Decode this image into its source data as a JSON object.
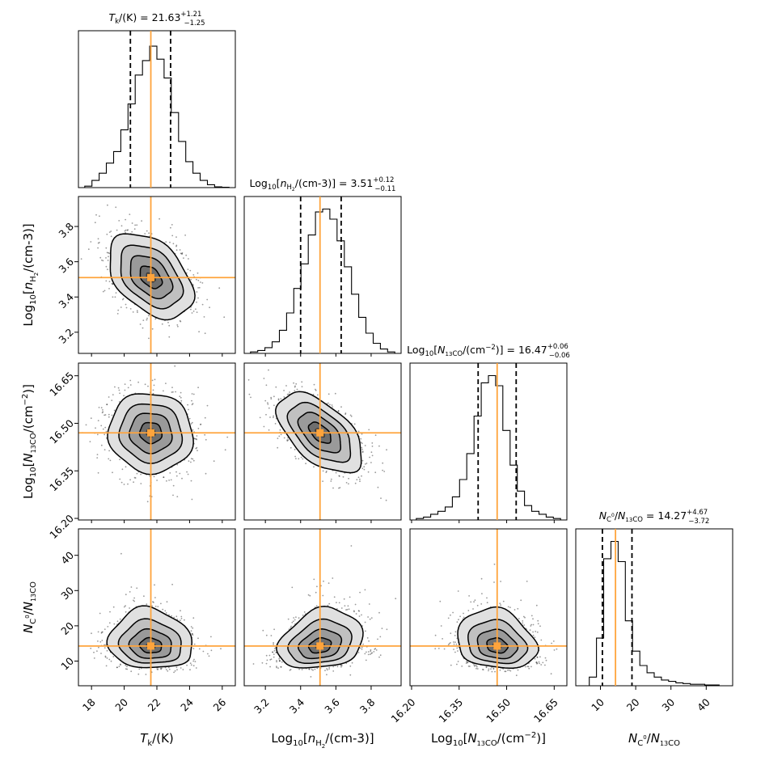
{
  "style": {
    "truth_color": "#ffa43c",
    "quantile_color": "#000000",
    "hist_color": "#000000",
    "density_colors": [
      "#ffffff",
      "#e0e0e0",
      "#c0c0c0",
      "#9a9a9a",
      "#6e6e6e",
      "#3a3a3a"
    ]
  },
  "chart_data": {
    "type": "corner",
    "parameters": [
      {
        "id": "tk",
        "label": "T_k/(K)",
        "label_svg": "<tspan font-style='italic'>T</tspan><tspan font-size='10' dy='4'>k</tspan><tspan dy='-4'>/(K)</tspan>",
        "title_svg": "<tspan font-style='italic'>T</tspan><tspan font-size='8.5' dy='3'>k</tspan><tspan dy='-3'>/(K) = 21.63</tspan><tspan font-size='8.5' dy='-6'>+1.21</tspan><tspan font-size='8.5' dx='-22' dy='11'>−1.25</tspan>",
        "title": "T_k/(K) = 21.63 +1.21 -1.25",
        "median": 21.63,
        "err_plus": 1.21,
        "err_minus": 1.25,
        "range": [
          17.2,
          26.8
        ],
        "ticks": [
          18,
          20,
          22,
          24,
          26
        ],
        "tick_labels": [
          "18",
          "20",
          "22",
          "24",
          "26"
        ],
        "hist_heights": [
          0.01,
          0.05,
          0.1,
          0.17,
          0.25,
          0.4,
          0.58,
          0.78,
          0.88,
          0.98,
          0.89,
          0.76,
          0.52,
          0.32,
          0.18,
          0.1,
          0.05,
          0.02,
          0.005,
          0.002
        ]
      },
      {
        "id": "nh2",
        "label": "Log10[n_H2/(cm-3)]",
        "label_svg": "<tspan>Log</tspan><tspan font-size='10' dy='4'>10</tspan><tspan dy='-4'>[</tspan><tspan font-style='italic'>n</tspan><tspan font-size='10' dy='4'>H</tspan><tspan font-size='7' dy='3'>2</tspan><tspan dy='-7'>/(cm-3)]</tspan>",
        "title_svg": "<tspan>Log</tspan><tspan font-size='8.5' dy='3'>10</tspan><tspan dy='-3'>[</tspan><tspan font-style='italic'>n</tspan><tspan font-size='8.5' dy='3'>H</tspan><tspan font-size='6' dy='2'>2</tspan><tspan dy='-5'>/(cm-3)] = 3.51</tspan><tspan font-size='8.5' dy='-6'>+0.12</tspan><tspan font-size='8.5' dx='-24' dy='11'>−0.11</tspan>",
        "title": "Log10[n_H2/(cm-3)] = 3.51 +0.12 -0.11",
        "median": 3.51,
        "err_plus": 0.12,
        "err_minus": 0.11,
        "range": [
          3.08,
          3.97
        ],
        "ticks": [
          3.2,
          3.4,
          3.6,
          3.8
        ],
        "tick_labels": [
          "3.2",
          "3.4",
          "3.6",
          "3.8"
        ],
        "hist_heights": [
          0.01,
          0.02,
          0.04,
          0.08,
          0.16,
          0.28,
          0.45,
          0.62,
          0.82,
          0.98,
          1.0,
          0.93,
          0.78,
          0.6,
          0.41,
          0.25,
          0.14,
          0.07,
          0.03,
          0.01
        ]
      },
      {
        "id": "n13co",
        "label": "Log10[N_13CO/(cm^-2)]",
        "label_svg": "<tspan>Log</tspan><tspan font-size='10' dy='4'>10</tspan><tspan dy='-4'>[</tspan><tspan font-style='italic'>N</tspan><tspan font-size='8' dy='4'>13</tspan><tspan font-size='10'>CO</tspan><tspan dy='-4'>/(cm</tspan><tspan font-size='10' dy='-6'>−2</tspan><tspan dy='6'>)]</tspan>",
        "title_svg": "<tspan>Log</tspan><tspan font-size='8.5' dy='3'>10</tspan><tspan dy='-3'>[</tspan><tspan font-style='italic'>N</tspan><tspan font-size='7' dy='3'>13</tspan><tspan font-size='8.5'>CO</tspan><tspan dy='-3'>/(cm</tspan><tspan font-size='8.5' dy='-5'>−2</tspan><tspan dy='5'>)] = 16.47</tspan><tspan font-size='8.5' dy='-6'>+0.06</tspan><tspan font-size='8.5' dx='-24' dy='11'>−0.06</tspan>",
        "title": "Log10[N_13CO/(cm^-2)] = 16.47 +0.06 -0.06",
        "median": 16.47,
        "err_plus": 0.06,
        "err_minus": 0.06,
        "range": [
          16.195,
          16.69
        ],
        "ticks": [
          16.2,
          16.35,
          16.5,
          16.65
        ],
        "tick_labels": [
          "16.20",
          "16.35",
          "16.50",
          "16.65"
        ],
        "hist_heights": [
          0.01,
          0.02,
          0.04,
          0.06,
          0.09,
          0.16,
          0.28,
          0.46,
          0.72,
          0.95,
          1.0,
          0.93,
          0.62,
          0.38,
          0.2,
          0.1,
          0.06,
          0.04,
          0.02,
          0.01
        ]
      },
      {
        "id": "ratio",
        "label": "N_C0/N_13CO",
        "label_svg": "<tspan font-style='italic'>N</tspan><tspan font-size='10' dy='4'>C</tspan><tspan font-size='7' dy='-8'>0</tspan><tspan dy='4'>/</tspan><tspan font-style='italic'>N</tspan><tspan font-size='8' dy='4'>13</tspan><tspan font-size='10'>CO</tspan>",
        "title_svg": "<tspan font-style='italic'>N</tspan><tspan font-size='8.5' dy='3'>C</tspan><tspan font-size='6' dy='-6'>0</tspan><tspan dy='3'>/</tspan><tspan font-style='italic'>N</tspan><tspan font-size='7' dy='3'>13</tspan><tspan font-size='8.5'>CO</tspan><tspan dy='-3'> = 14.27</tspan><tspan font-size='8.5' dy='-6'>+4.67</tspan><tspan font-size='8.5' dx='-24' dy='11'>−3.72</tspan>",
        "title": "N_C0/N_13CO = 14.27 +4.67 -3.72",
        "median": 14.27,
        "err_plus": 4.67,
        "err_minus": 3.72,
        "range": [
          3.0,
          47.5
        ],
        "ticks": [
          10,
          20,
          30,
          40
        ],
        "tick_labels": [
          "10",
          "20",
          "30",
          "40"
        ],
        "yticks": [
          10,
          20,
          30,
          40
        ],
        "hist_heights": [
          0.0,
          0.06,
          0.33,
          0.88,
          1.0,
          0.86,
          0.45,
          0.24,
          0.14,
          0.09,
          0.06,
          0.04,
          0.03,
          0.02,
          0.015,
          0.01,
          0.01,
          0.005,
          0.005,
          0.0
        ]
      }
    ],
    "correlations": {
      "nh2|tk": -0.42,
      "n13co|tk": -0.05,
      "n13co|nh2": -0.55,
      "ratio|tk": -0.08,
      "ratio|nh2": 0.22,
      "ratio|n13co": -0.18
    },
    "contour_levels_sigma": [
      0.5,
      1.0,
      1.5,
      2.0
    ],
    "truth_values": [
      21.63,
      3.51,
      16.47,
      14.27
    ]
  }
}
